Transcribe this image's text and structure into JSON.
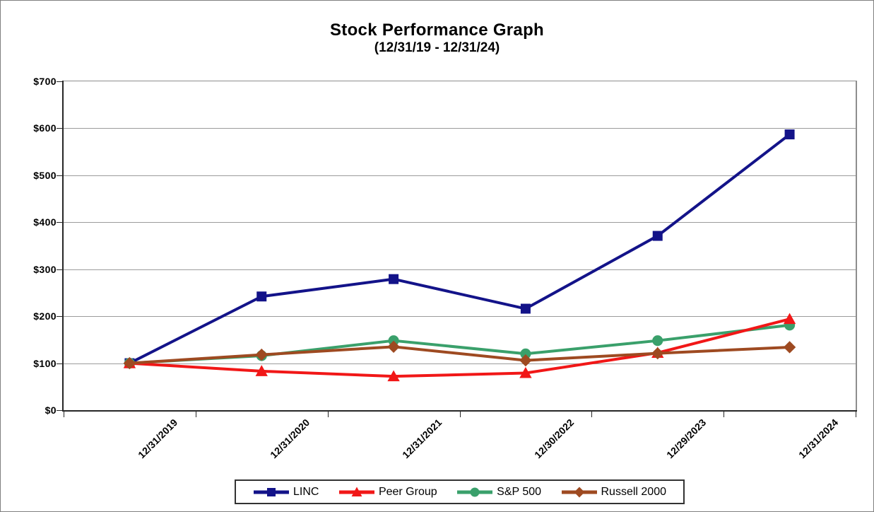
{
  "chart_data": {
    "type": "line",
    "title": "Stock Performance Graph",
    "subtitle": "(12/31/19 - 12/31/24)",
    "categories": [
      "12/31/2019",
      "12/31/2020",
      "12/31/2021",
      "12/30/2022",
      "12/29/2023",
      "12/31/2024"
    ],
    "y_axis": {
      "min": 0,
      "max": 700,
      "step": 100,
      "tick_labels": [
        "$0",
        "$100",
        "$200",
        "$300",
        "$400",
        "$500",
        "$600",
        "$700"
      ]
    },
    "grid": true,
    "legend_position": "bottom",
    "series": [
      {
        "name": "LINC",
        "color": "#131389",
        "marker": "square",
        "z": 1,
        "values": [
          100,
          242,
          279,
          216,
          371,
          587
        ]
      },
      {
        "name": "Peer Group",
        "color": "#F11717",
        "marker": "triangle",
        "z": 3,
        "values": [
          100,
          83,
          72,
          79,
          122,
          194
        ]
      },
      {
        "name": "S&P 500",
        "color": "#3AA06B",
        "marker": "circle",
        "z": 2,
        "values": [
          100,
          116,
          148,
          120,
          148,
          181
        ]
      },
      {
        "name": "Russell 2000",
        "color": "#9E4A21",
        "marker": "diamond",
        "z": 4,
        "values": [
          100,
          118,
          135,
          106,
          121,
          134
        ]
      }
    ],
    "colors": {
      "grid": "#9c9c9c",
      "axis": "#262626",
      "plot_border": "#8e8e8e",
      "text": "#000000"
    }
  }
}
